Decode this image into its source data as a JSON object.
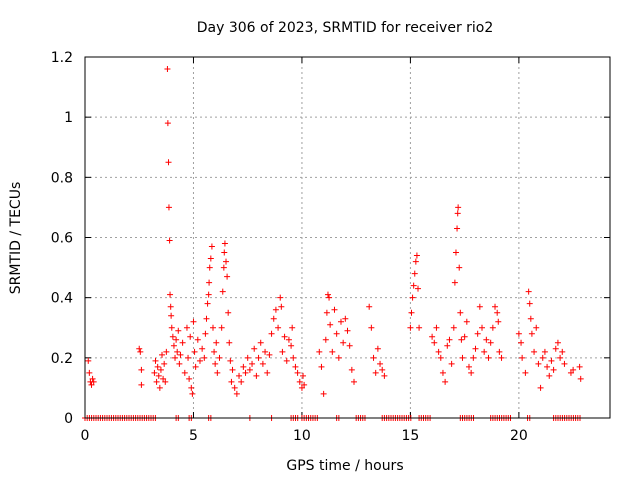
{
  "chart_data": {
    "type": "scatter",
    "title": "Day 306 of 2023, SRMTID for receiver rio2",
    "xlabel": "GPS time / hours",
    "ylabel": "SRMTID / TECUs",
    "xlim": [
      0,
      24.2
    ],
    "ylim": [
      0,
      1.2
    ],
    "x_ticks": [
      0,
      5,
      10,
      15,
      20
    ],
    "x_tick_labels": [
      "0",
      "5",
      "10",
      "15",
      "20"
    ],
    "y_ticks": [
      0,
      0.2,
      0.4,
      0.6,
      0.8,
      1.0,
      1.2
    ],
    "y_tick_labels": [
      "0",
      "0.2",
      "0.4",
      "0.6",
      "0.8",
      "1",
      "1.2"
    ],
    "grid": true,
    "legend": "none",
    "marker": "plus",
    "color": "#ff0000",
    "series": [
      {
        "name": "SRMTID",
        "points": [
          [
            0.15,
            0.19
          ],
          [
            0.2,
            0.15
          ],
          [
            0.25,
            0.12
          ],
          [
            0.3,
            0.11
          ],
          [
            0.35,
            0.13
          ],
          [
            0.4,
            0.12
          ],
          [
            2.5,
            0.23
          ],
          [
            2.55,
            0.22
          ],
          [
            2.6,
            0.16
          ],
          [
            2.6,
            0.11
          ],
          [
            3.2,
            0.15
          ],
          [
            3.25,
            0.19
          ],
          [
            3.3,
            0.12
          ],
          [
            3.35,
            0.17
          ],
          [
            3.4,
            0.14
          ],
          [
            3.45,
            0.1
          ],
          [
            3.5,
            0.16
          ],
          [
            3.55,
            0.21
          ],
          [
            3.6,
            0.13
          ],
          [
            3.65,
            0.18
          ],
          [
            3.7,
            0.12
          ],
          [
            3.75,
            0.22
          ],
          [
            3.8,
            1.16
          ],
          [
            3.82,
            0.98
          ],
          [
            3.85,
            0.85
          ],
          [
            3.87,
            0.7
          ],
          [
            3.9,
            0.59
          ],
          [
            3.92,
            0.41
          ],
          [
            3.95,
            0.37
          ],
          [
            3.97,
            0.34
          ],
          [
            4.0,
            0.3
          ],
          [
            4.05,
            0.27
          ],
          [
            4.1,
            0.24
          ],
          [
            4.15,
            0.2
          ],
          [
            4.2,
            0.26
          ],
          [
            4.25,
            0.22
          ],
          [
            4.3,
            0.29
          ],
          [
            4.35,
            0.18
          ],
          [
            4.4,
            0.21
          ],
          [
            4.5,
            0.25
          ],
          [
            4.6,
            0.15
          ],
          [
            4.7,
            0.3
          ],
          [
            4.75,
            0.2
          ],
          [
            4.8,
            0.13
          ],
          [
            4.85,
            0.27
          ],
          [
            4.9,
            0.1
          ],
          [
            4.95,
            0.08
          ],
          [
            5.0,
            0.32
          ],
          [
            5.05,
            0.22
          ],
          [
            5.1,
            0.17
          ],
          [
            5.2,
            0.26
          ],
          [
            5.3,
            0.19
          ],
          [
            5.4,
            0.23
          ],
          [
            5.5,
            0.2
          ],
          [
            5.55,
            0.28
          ],
          [
            5.6,
            0.33
          ],
          [
            5.65,
            0.38
          ],
          [
            5.7,
            0.41
          ],
          [
            5.72,
            0.45
          ],
          [
            5.75,
            0.5
          ],
          [
            5.8,
            0.53
          ],
          [
            5.85,
            0.57
          ],
          [
            5.9,
            0.3
          ],
          [
            5.95,
            0.22
          ],
          [
            6.0,
            0.18
          ],
          [
            6.05,
            0.25
          ],
          [
            6.1,
            0.15
          ],
          [
            6.2,
            0.2
          ],
          [
            6.3,
            0.3
          ],
          [
            6.35,
            0.42
          ],
          [
            6.4,
            0.5
          ],
          [
            6.42,
            0.55
          ],
          [
            6.45,
            0.58
          ],
          [
            6.5,
            0.52
          ],
          [
            6.55,
            0.47
          ],
          [
            6.6,
            0.35
          ],
          [
            6.65,
            0.25
          ],
          [
            6.7,
            0.19
          ],
          [
            6.75,
            0.12
          ],
          [
            6.8,
            0.16
          ],
          [
            6.9,
            0.1
          ],
          [
            7.0,
            0.08
          ],
          [
            7.1,
            0.14
          ],
          [
            7.2,
            0.12
          ],
          [
            7.3,
            0.17
          ],
          [
            7.4,
            0.15
          ],
          [
            7.5,
            0.2
          ],
          [
            7.6,
            0.16
          ],
          [
            7.7,
            0.18
          ],
          [
            7.8,
            0.23
          ],
          [
            7.9,
            0.14
          ],
          [
            8.0,
            0.2
          ],
          [
            8.1,
            0.25
          ],
          [
            8.2,
            0.18
          ],
          [
            8.3,
            0.22
          ],
          [
            8.4,
            0.15
          ],
          [
            8.5,
            0.21
          ],
          [
            8.6,
            0.28
          ],
          [
            8.7,
            0.33
          ],
          [
            8.8,
            0.36
          ],
          [
            8.9,
            0.3
          ],
          [
            9.0,
            0.4
          ],
          [
            9.05,
            0.37
          ],
          [
            9.1,
            0.22
          ],
          [
            9.2,
            0.27
          ],
          [
            9.3,
            0.19
          ],
          [
            9.4,
            0.26
          ],
          [
            9.5,
            0.24
          ],
          [
            9.55,
            0.3
          ],
          [
            9.6,
            0.2
          ],
          [
            9.7,
            0.17
          ],
          [
            9.8,
            0.15
          ],
          [
            9.9,
            0.12
          ],
          [
            10.0,
            0.1
          ],
          [
            10.05,
            0.14
          ],
          [
            10.1,
            0.11
          ],
          [
            10.8,
            0.22
          ],
          [
            10.9,
            0.17
          ],
          [
            11.0,
            0.08
          ],
          [
            11.1,
            0.26
          ],
          [
            11.15,
            0.35
          ],
          [
            11.2,
            0.41
          ],
          [
            11.25,
            0.4
          ],
          [
            11.3,
            0.31
          ],
          [
            11.4,
            0.22
          ],
          [
            11.5,
            0.36
          ],
          [
            11.6,
            0.28
          ],
          [
            11.7,
            0.2
          ],
          [
            11.8,
            0.32
          ],
          [
            11.9,
            0.25
          ],
          [
            12.0,
            0.33
          ],
          [
            12.1,
            0.29
          ],
          [
            12.2,
            0.24
          ],
          [
            12.3,
            0.16
          ],
          [
            12.4,
            0.12
          ],
          [
            13.1,
            0.37
          ],
          [
            13.2,
            0.3
          ],
          [
            13.3,
            0.2
          ],
          [
            13.4,
            0.15
          ],
          [
            13.5,
            0.23
          ],
          [
            13.6,
            0.18
          ],
          [
            13.7,
            0.16
          ],
          [
            13.8,
            0.14
          ],
          [
            15.0,
            0.3
          ],
          [
            15.05,
            0.35
          ],
          [
            15.1,
            0.4
          ],
          [
            15.15,
            0.44
          ],
          [
            15.2,
            0.48
          ],
          [
            15.25,
            0.52
          ],
          [
            15.3,
            0.54
          ],
          [
            15.35,
            0.43
          ],
          [
            15.4,
            0.3
          ],
          [
            16.0,
            0.27
          ],
          [
            16.1,
            0.25
          ],
          [
            16.2,
            0.3
          ],
          [
            16.3,
            0.22
          ],
          [
            16.4,
            0.2
          ],
          [
            16.5,
            0.15
          ],
          [
            16.6,
            0.12
          ],
          [
            16.7,
            0.24
          ],
          [
            16.8,
            0.26
          ],
          [
            16.9,
            0.18
          ],
          [
            17.0,
            0.3
          ],
          [
            17.05,
            0.45
          ],
          [
            17.1,
            0.55
          ],
          [
            17.15,
            0.63
          ],
          [
            17.18,
            0.68
          ],
          [
            17.2,
            0.7
          ],
          [
            17.25,
            0.5
          ],
          [
            17.3,
            0.35
          ],
          [
            17.35,
            0.26
          ],
          [
            17.4,
            0.2
          ],
          [
            17.5,
            0.27
          ],
          [
            17.6,
            0.32
          ],
          [
            17.7,
            0.17
          ],
          [
            17.8,
            0.15
          ],
          [
            17.9,
            0.2
          ],
          [
            18.0,
            0.23
          ],
          [
            18.1,
            0.28
          ],
          [
            18.2,
            0.37
          ],
          [
            18.3,
            0.3
          ],
          [
            18.4,
            0.22
          ],
          [
            18.5,
            0.26
          ],
          [
            18.6,
            0.2
          ],
          [
            18.7,
            0.25
          ],
          [
            18.8,
            0.3
          ],
          [
            18.9,
            0.37
          ],
          [
            19.0,
            0.35
          ],
          [
            19.05,
            0.32
          ],
          [
            19.1,
            0.22
          ],
          [
            19.2,
            0.2
          ],
          [
            20.0,
            0.28
          ],
          [
            20.1,
            0.25
          ],
          [
            20.15,
            0.2
          ],
          [
            20.3,
            0.15
          ],
          [
            20.45,
            0.42
          ],
          [
            20.5,
            0.38
          ],
          [
            20.55,
            0.33
          ],
          [
            20.6,
            0.28
          ],
          [
            20.7,
            0.22
          ],
          [
            20.8,
            0.3
          ],
          [
            20.9,
            0.18
          ],
          [
            21.0,
            0.1
          ],
          [
            21.1,
            0.2
          ],
          [
            21.2,
            0.22
          ],
          [
            21.3,
            0.17
          ],
          [
            21.4,
            0.14
          ],
          [
            21.5,
            0.19
          ],
          [
            21.6,
            0.16
          ],
          [
            21.7,
            0.23
          ],
          [
            21.8,
            0.25
          ],
          [
            21.9,
            0.2
          ],
          [
            22.0,
            0.22
          ],
          [
            22.1,
            0.18
          ],
          [
            22.4,
            0.15
          ],
          [
            22.5,
            0.16
          ],
          [
            22.8,
            0.17
          ],
          [
            22.85,
            0.13
          ]
        ]
      }
    ],
    "zero_segments": [
      [
        0,
        3.3
      ],
      [
        4.2,
        4.4
      ],
      [
        4.8,
        5.0
      ],
      [
        5.7,
        5.9
      ],
      [
        7.6,
        7.7
      ],
      [
        8.6,
        8.7
      ],
      [
        9.5,
        9.9
      ],
      [
        10.0,
        10.8
      ],
      [
        11.6,
        11.8
      ],
      [
        12.5,
        13.0
      ],
      [
        13.7,
        15.1
      ],
      [
        15.4,
        16.0
      ],
      [
        17.3,
        18.0
      ],
      [
        18.7,
        19.7
      ],
      [
        20.4,
        20.6
      ],
      [
        21.6,
        22.9
      ]
    ]
  }
}
